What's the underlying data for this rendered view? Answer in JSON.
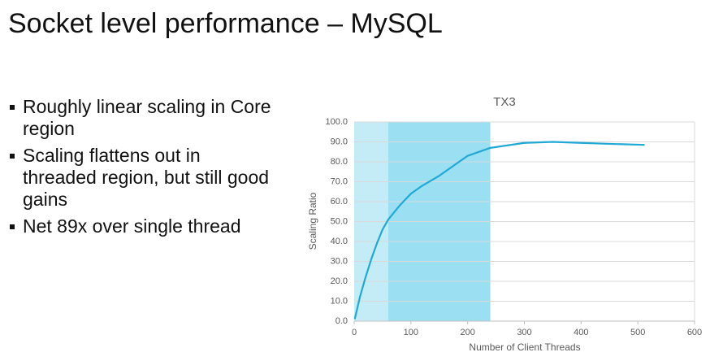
{
  "title": "Socket level performance – MySQL",
  "bullets": [
    "Roughly linear scaling in Core region",
    "Scaling flattens out in threaded region, but still good gains",
    "Net 89x over single thread"
  ],
  "chart_data": {
    "type": "line",
    "title": "TX3",
    "x_label": "Number of Client Threads",
    "y_label": "Scaling Ratio",
    "x": [
      1,
      10,
      20,
      30,
      40,
      50,
      60,
      80,
      100,
      120,
      150,
      200,
      240,
      300,
      350,
      400,
      450,
      512
    ],
    "values": [
      1,
      12,
      22,
      31,
      39,
      46,
      51,
      58,
      64,
      68,
      73,
      83,
      87,
      89.5,
      90,
      89.5,
      89,
      88.5
    ],
    "color": "#1fa9d4",
    "regions": [
      {
        "xlim": [
          0,
          60
        ],
        "color": "#c4ecf7"
      },
      {
        "xlim": [
          60,
          240
        ],
        "color": "#9bdff2"
      }
    ],
    "xlim": [
      0,
      600
    ],
    "xticks": [
      0,
      100,
      200,
      300,
      400,
      500,
      600
    ],
    "ylim": [
      0,
      100
    ],
    "yticks": [
      {
        "value": 0,
        "label": "0.0"
      },
      {
        "value": 10,
        "label": "10.0"
      },
      {
        "value": 20,
        "label": "20.0"
      },
      {
        "value": 30,
        "label": "30.0"
      },
      {
        "value": 40,
        "label": "40.0"
      },
      {
        "value": 50,
        "label": "50.0"
      },
      {
        "value": 60,
        "label": "60.0"
      },
      {
        "value": 70,
        "label": "70.0"
      },
      {
        "value": 80,
        "label": "80.0"
      },
      {
        "value": 90,
        "label": "90.0"
      },
      {
        "value": 100,
        "label": "100.0"
      }
    ],
    "grid": true
  }
}
